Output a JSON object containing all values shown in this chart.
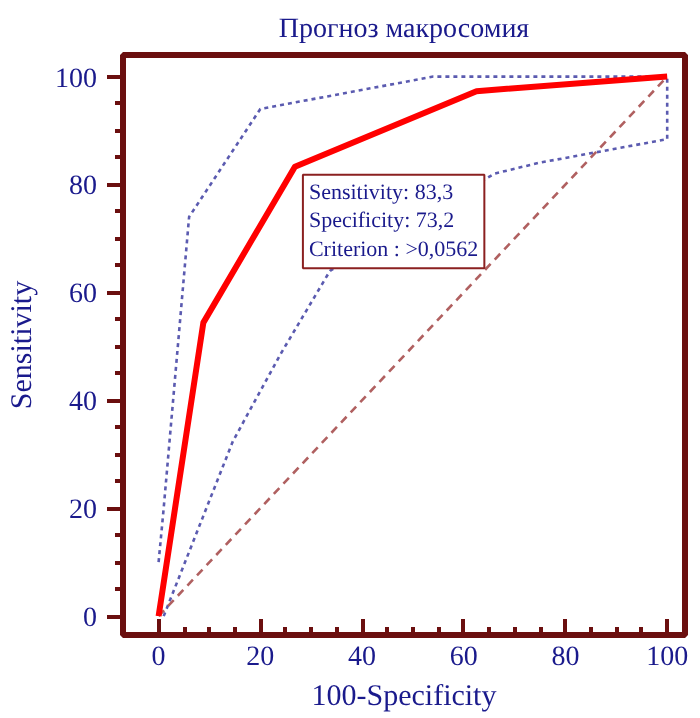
{
  "chart_data": {
    "type": "line",
    "title": "Прогноз макросомия",
    "xlabel": "100-Specificity",
    "ylabel": "Sensitivity",
    "xlim": [
      -7,
      103.5
    ],
    "ylim": [
      -3.5,
      104
    ],
    "xticks": [
      0,
      20,
      40,
      60,
      80,
      100
    ],
    "yticks": [
      0,
      20,
      40,
      60,
      80,
      100
    ],
    "marker": "none",
    "series": [
      {
        "color": "#5b5bb0",
        "line_style": "dotted",
        "x": [
          0,
          1,
          6,
          20,
          54,
          100
        ],
        "values": [
          10,
          20,
          74,
          94,
          100,
          100
        ]
      },
      {
        "color": "#5b5bb0",
        "line_style": "dotted",
        "x": [
          1,
          14.6,
          24,
          33.7,
          66,
          74.7,
          100,
          100
        ],
        "values": [
          0,
          32.4,
          48.6,
          64,
          82,
          84,
          88.4,
          100
        ]
      },
      {
        "color": "#b06060",
        "line_style": "dashed",
        "x": [
          0,
          100
        ],
        "values": [
          0,
          100
        ]
      },
      {
        "color": "#ff0000",
        "line_style": "solid",
        "x": [
          0,
          8.8,
          26.8,
          62.5,
          100
        ],
        "values": [
          0,
          54.4,
          83.3,
          97.3,
          100
        ]
      }
    ],
    "annotations": [
      {
        "text": "Sensitivity: 83,3\nSpecificity: 73,2\nCriterion : >0,0562",
        "x": 26.8,
        "y": 83.3
      }
    ]
  }
}
